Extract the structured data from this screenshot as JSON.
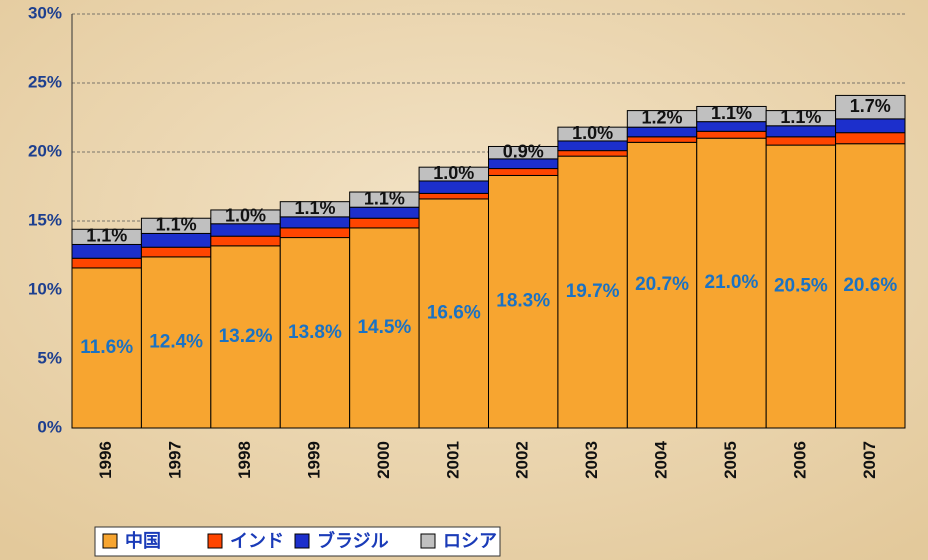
{
  "chart_data": {
    "type": "stacked_bar",
    "categories": [
      "1996",
      "1997",
      "1998",
      "1999",
      "2000",
      "2001",
      "2002",
      "2003",
      "2004",
      "2005",
      "2006",
      "2007"
    ],
    "series": [
      {
        "name": "中国",
        "color": "#f7a530",
        "values": [
          11.6,
          12.4,
          13.2,
          13.8,
          14.5,
          16.6,
          18.3,
          19.7,
          20.7,
          21.0,
          20.5,
          20.6
        ],
        "value_labels": [
          "11.6%",
          "12.4%",
          "13.2%",
          "13.8%",
          "14.5%",
          "16.6%",
          "18.3%",
          "19.7%",
          "20.7%",
          "21.0%",
          "20.5%",
          "20.6%"
        ]
      },
      {
        "name": "インド",
        "color": "#ff4500",
        "values": [
          0.7,
          0.7,
          0.7,
          0.7,
          0.7,
          0.4,
          0.5,
          0.4,
          0.4,
          0.5,
          0.6,
          0.8
        ]
      },
      {
        "name": "ブラジル",
        "color": "#1c2fcc",
        "values": [
          1.0,
          1.0,
          0.9,
          0.8,
          0.8,
          0.9,
          0.7,
          0.7,
          0.7,
          0.7,
          0.8,
          1.0
        ]
      },
      {
        "name": "ロシア",
        "color": "#c0c0c0",
        "values": [
          1.1,
          1.1,
          1.0,
          1.1,
          1.1,
          1.0,
          0.9,
          1.0,
          1.2,
          1.1,
          1.1,
          1.7
        ],
        "value_labels": [
          "1.1%",
          "1.1%",
          "1.0%",
          "1.1%",
          "1.1%",
          "1.0%",
          "0.9%",
          "1.0%",
          "1.2%",
          "1.1%",
          "1.1%",
          "1.7%"
        ]
      }
    ],
    "ylim": [
      0,
      30
    ],
    "yticks": [
      {
        "value": 0,
        "label": "0%"
      },
      {
        "value": 5,
        "label": "5%"
      },
      {
        "value": 10,
        "label": "10%"
      },
      {
        "value": 15,
        "label": "15%"
      },
      {
        "value": 20,
        "label": "20%"
      },
      {
        "value": 25,
        "label": "25%"
      },
      {
        "value": 30,
        "label": "30%"
      }
    ],
    "grid": true,
    "legend": "bottom-left"
  }
}
